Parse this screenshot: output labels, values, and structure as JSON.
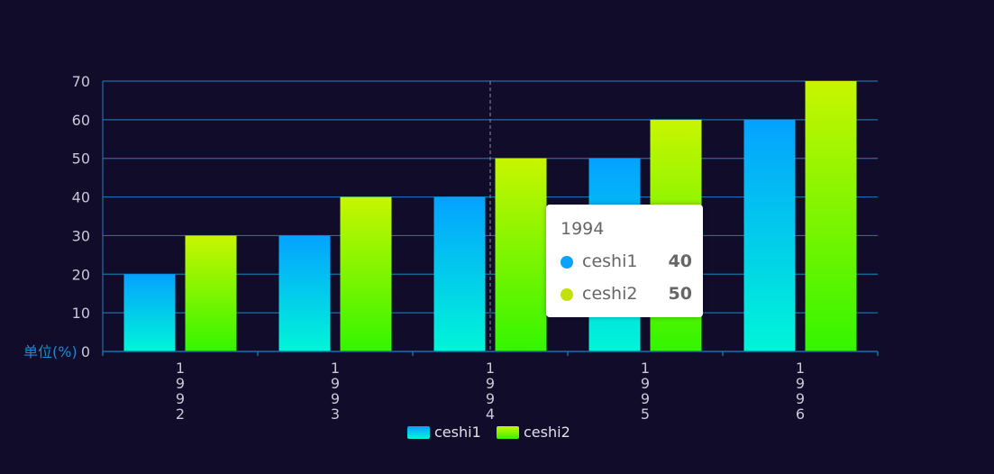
{
  "chart_data": {
    "type": "bar",
    "categories": [
      "1992",
      "1993",
      "1994",
      "1995",
      "1996"
    ],
    "series": [
      {
        "name": "ceshi1",
        "values": [
          20,
          30,
          40,
          50,
          60
        ]
      },
      {
        "name": "ceshi2",
        "values": [
          30,
          40,
          50,
          60,
          70
        ]
      }
    ],
    "yunit_label": "单位(%)",
    "ylim": [
      0,
      70
    ],
    "yticks": [
      0,
      10,
      20,
      30,
      40,
      50,
      60,
      70
    ],
    "grid": true,
    "legend_position": "bottom-center",
    "axis_color": "#1a6fa8",
    "label_color": "#c8c8d8",
    "unit_color": "#1a8ad8",
    "series_colors": {
      "ceshi1": {
        "top": "#04a2ff",
        "bottom": "#00f5d8"
      },
      "ceshi2": {
        "top": "#c8f500",
        "bottom": "#34f500"
      }
    },
    "tooltip": {
      "title": "1994",
      "rows": [
        {
          "name": "ceshi1",
          "value": "40",
          "dot_color": "#0aa1ff"
        },
        {
          "name": "ceshi2",
          "value": "50",
          "dot_color": "#c4e00a"
        }
      ]
    }
  }
}
